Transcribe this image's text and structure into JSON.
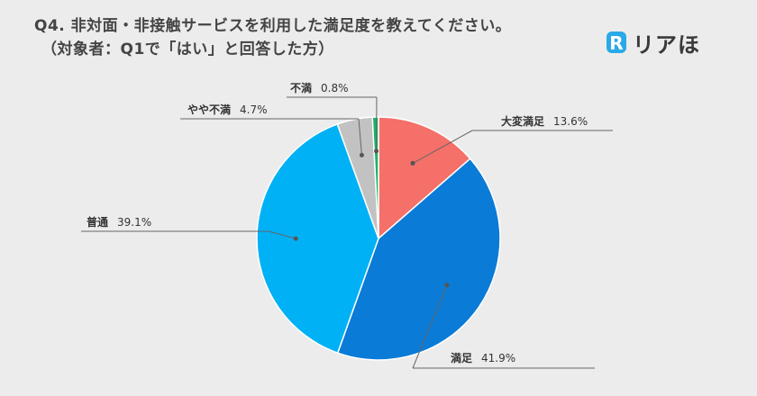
{
  "title_line1": "Q4. 非対面・非接触サービスを利用した満足度を教えてください。",
  "title_line2": "（対象者：Q1で「はい」と回答した方）",
  "logo": {
    "text": "リアほ",
    "mark_letter": "R",
    "mark_color": "#29a9e8"
  },
  "chart_data": {
    "type": "pie",
    "start_angle_deg": 0,
    "direction": "clockwise",
    "slices": [
      {
        "label": "大変満足",
        "value": 13.6,
        "display": "13.6%",
        "color": "#f47069"
      },
      {
        "label": "満足",
        "value": 41.9,
        "display": "41.9%",
        "color": "#0a7bd6"
      },
      {
        "label": "普通",
        "value": 39.1,
        "display": "39.1%",
        "color": "#00b1f5"
      },
      {
        "label": "やや不満",
        "value": 4.7,
        "display": "4.7%",
        "color": "#c2c2c2"
      },
      {
        "label": "不満",
        "value": 0.8,
        "display": "0.8%",
        "color": "#1bb26b"
      }
    ]
  }
}
